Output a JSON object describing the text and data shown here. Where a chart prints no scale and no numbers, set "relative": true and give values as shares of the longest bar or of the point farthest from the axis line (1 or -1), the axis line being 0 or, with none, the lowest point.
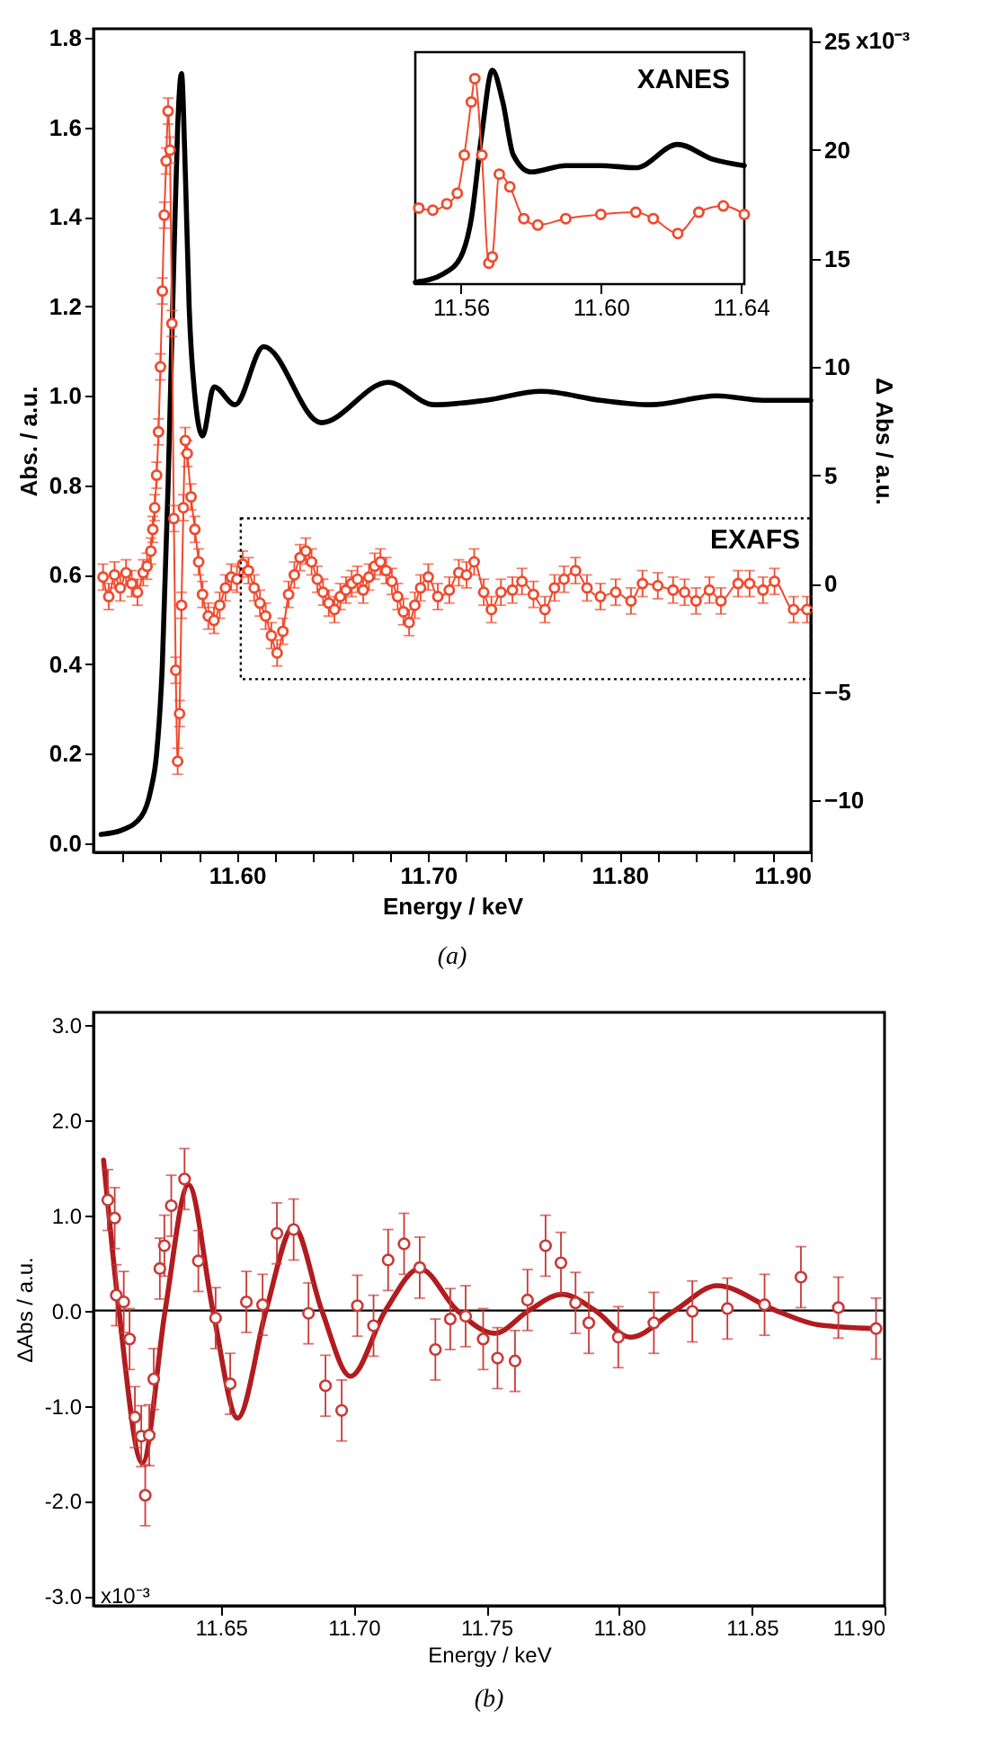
{
  "chart_data": [
    {
      "type": "line",
      "line_style": "solid",
      "xlabel": "Energy / keV",
      "ylabel": "Abs. / a.u.",
      "y2label": "Δ Abs / a.u.",
      "xlim": [
        11.525,
        11.9
      ],
      "xticks": [
        {
          "value": 11.54,
          "label": null
        },
        {
          "value": 11.56,
          "label": null
        },
        {
          "value": 11.58,
          "label": null
        },
        {
          "value": 11.6,
          "label": "11.60"
        },
        {
          "value": 11.62,
          "label": null
        },
        {
          "value": 11.64,
          "label": null
        },
        {
          "value": 11.66,
          "label": null
        },
        {
          "value": 11.68,
          "label": null
        },
        {
          "value": 11.7,
          "label": "11.70"
        },
        {
          "value": 11.72,
          "label": null
        },
        {
          "value": 11.74,
          "label": null
        },
        {
          "value": 11.76,
          "label": null
        },
        {
          "value": 11.78,
          "label": null
        },
        {
          "value": 11.8,
          "label": "11.80"
        },
        {
          "value": 11.82,
          "label": null
        },
        {
          "value": 11.84,
          "label": null
        },
        {
          "value": 11.86,
          "label": null
        },
        {
          "value": 11.88,
          "label": null
        },
        {
          "value": 11.9,
          "label": "11.90"
        }
      ],
      "ylim": [
        -0.02,
        1.82
      ],
      "yticks": [
        {
          "value": 0,
          "label": "0.0"
        },
        0.2,
        0.4,
        0.6,
        0.8,
        {
          "value": 1,
          "label": "1.0"
        },
        1.2,
        1.4,
        1.6,
        1.8
      ],
      "y2lim": [
        -12.4,
        25.6
      ],
      "y2ticks": [
        -10,
        -5,
        0,
        5,
        10,
        15,
        20,
        25
      ],
      "annotations": [
        "EXAFS",
        "(a)",
        "x10⁻³"
      ],
      "series": [
        {
          "color": "#000000",
          "x": [
            11.529,
            11.54,
            11.55,
            11.555,
            11.558,
            11.561,
            11.564,
            11.567,
            11.569,
            11.571,
            11.573,
            11.575,
            11.578,
            11.582,
            11.588,
            11.599,
            11.614,
            11.644,
            11.679,
            11.703,
            11.73,
            11.759,
            11.79,
            11.816,
            11.851,
            11.875,
            11.9
          ],
          "values": [
            0.02,
            0.03,
            0.06,
            0.12,
            0.2,
            0.4,
            0.8,
            1.3,
            1.6,
            1.72,
            1.5,
            1.2,
            1.0,
            0.91,
            1.02,
            0.98,
            1.11,
            0.94,
            1.03,
            0.98,
            0.99,
            1.01,
            0.99,
            0.98,
            1.0,
            0.99,
            0.99
          ]
        },
        {
          "color": "#ef4a2e",
          "axis": "y2",
          "marker": "circle",
          "x": [
            11.53,
            11.533,
            11.536,
            11.539,
            11.542,
            11.545,
            11.548,
            11.551,
            11.553,
            11.555,
            11.556,
            11.557,
            11.558,
            11.559,
            11.56,
            11.561,
            11.562,
            11.563,
            11.564,
            11.565,
            11.566,
            11.567,
            11.568,
            11.569,
            11.57,
            11.571,
            11.572,
            11.573,
            11.574,
            11.576,
            11.578,
            11.58,
            11.582,
            11.585,
            11.588,
            11.591,
            11.594,
            11.597,
            11.6,
            11.603,
            11.606,
            11.609,
            11.612,
            11.615,
            11.618,
            11.621,
            11.624,
            11.627,
            11.63,
            11.633,
            11.636,
            11.639,
            11.642,
            11.645,
            11.648,
            11.651,
            11.654,
            11.657,
            11.66,
            11.663,
            11.666,
            11.669,
            11.672,
            11.675,
            11.678,
            11.681,
            11.684,
            11.687,
            11.69,
            11.693,
            11.696,
            11.7,
            11.705,
            11.711,
            11.716,
            11.72,
            11.724,
            11.729,
            11.733,
            11.738,
            11.744,
            11.749,
            11.755,
            11.761,
            11.766,
            11.771,
            11.777,
            11.783,
            11.79,
            11.798,
            11.806,
            11.812,
            11.82,
            11.828,
            11.834,
            11.84,
            11.847,
            11.853,
            11.862,
            11.868,
            11.875,
            11.881,
            11.891,
            11.898
          ],
          "values": [
            0.3,
            -0.6,
            0.4,
            -0.2,
            0.5,
            0.0,
            -0.4,
            0.5,
            0.8,
            1.5,
            2.5,
            3.5,
            5.0,
            7.0,
            10.0,
            13.5,
            17.0,
            19.5,
            21.8,
            20.0,
            12.0,
            3.0,
            -4.0,
            -8.2,
            -6.0,
            -1.0,
            3.5,
            6.6,
            6.0,
            4.0,
            2.5,
            1.0,
            -0.5,
            -1.5,
            -1.7,
            -1.0,
            -0.2,
            0.3,
            0.2,
            0.9,
            0.6,
            -0.2,
            -0.9,
            -1.5,
            -2.4,
            -3.2,
            -2.2,
            -0.5,
            0.4,
            1.2,
            1.5,
            1.0,
            0.2,
            -0.4,
            -0.9,
            -1.2,
            -0.6,
            -0.3,
            0.0,
            0.2,
            -0.3,
            0.3,
            0.8,
            1.0,
            0.6,
            0.1,
            -0.6,
            -1.3,
            -1.8,
            -1.0,
            -0.2,
            0.3,
            -0.6,
            -0.3,
            0.5,
            0.4,
            1.0,
            -0.4,
            -1.2,
            -0.4,
            -0.3,
            0.1,
            -0.5,
            -1.2,
            -0.2,
            0.2,
            0.6,
            -0.2,
            -0.6,
            -0.4,
            -0.8,
            0.0,
            -0.1,
            -0.3,
            -0.4,
            -0.8,
            -0.3,
            -0.8,
            0.0,
            0.0,
            -0.3,
            0.1,
            -1.2,
            -1.2
          ],
          "errors": [
            0.6,
            0.6,
            0.6,
            0.6,
            0.6,
            0.6,
            0.6,
            0.6,
            0.6,
            0.6,
            0.6,
            0.6,
            0.6,
            0.6,
            0.6,
            0.6,
            0.6,
            0.6,
            0.6,
            0.6,
            0.6,
            0.6,
            0.6,
            0.6,
            0.6,
            0.6,
            0.6,
            0.6,
            0.6,
            0.6,
            0.6,
            0.6,
            0.6,
            0.6,
            0.6,
            0.6,
            0.6,
            0.6,
            0.6,
            0.6,
            0.6,
            0.6,
            0.6,
            0.6,
            0.6,
            0.6,
            0.6,
            0.6,
            0.6,
            0.6,
            0.6,
            0.6,
            0.6,
            0.6,
            0.6,
            0.6,
            0.6,
            0.6,
            0.6,
            0.6,
            0.6,
            0.6,
            0.6,
            0.6,
            0.6,
            0.6,
            0.6,
            0.6,
            0.6,
            0.6,
            0.6,
            0.6,
            0.6,
            0.6,
            0.6,
            0.6,
            0.6,
            0.6,
            0.6,
            0.6,
            0.6,
            0.6,
            0.6,
            0.6,
            0.6,
            0.6,
            0.6,
            0.6,
            0.6,
            0.6,
            0.6,
            0.6,
            0.6,
            0.6,
            0.6,
            0.6,
            0.6,
            0.6,
            0.6,
            0.6,
            0.6,
            0.6,
            0.6,
            0.6
          ]
        }
      ]
    },
    {
      "type": "line",
      "line_style": "solid",
      "relative": true,
      "tick_labels": "x",
      "xlim": [
        11.547,
        11.641
      ],
      "xticks": [
        11.56,
        {
          "value": 11.6,
          "label": "11.60"
        },
        11.64
      ],
      "annotations": [
        "XANES"
      ],
      "series": [
        {
          "color": "#000000",
          "x": [
            11.547,
            11.555,
            11.56,
            11.563,
            11.566,
            11.569,
            11.572,
            11.575,
            11.58,
            11.59,
            11.6,
            11.61,
            11.622,
            11.632,
            11.641
          ],
          "values": [
            0.0,
            0.04,
            0.12,
            0.3,
            0.7,
            1.0,
            0.85,
            0.6,
            0.52,
            0.55,
            0.55,
            0.54,
            0.65,
            0.58,
            0.55
          ]
        },
        {
          "color": "#ef4a2e",
          "marker": "circle",
          "x": [
            11.548,
            11.552,
            11.556,
            11.559,
            11.561,
            11.563,
            11.564,
            11.566,
            11.568,
            11.569,
            11.571,
            11.574,
            11.578,
            11.582,
            11.59,
            11.6,
            11.61,
            11.615,
            11.622,
            11.628,
            11.635,
            11.641
          ],
          "values": [
            0.35,
            0.34,
            0.37,
            0.42,
            0.6,
            0.85,
            0.96,
            0.6,
            0.09,
            0.12,
            0.51,
            0.45,
            0.3,
            0.27,
            0.3,
            0.32,
            0.33,
            0.3,
            0.23,
            0.33,
            0.36,
            0.32
          ]
        }
      ]
    },
    {
      "type": "scatter",
      "line_style": "solid",
      "xlabel": "Energy / keV",
      "ylabel": "ΔAbs / a.u.",
      "xlim": [
        11.602,
        11.9
      ],
      "xticks": [
        11.65,
        {
          "value": 11.7,
          "label": "11.70"
        },
        11.75,
        {
          "value": 11.8,
          "label": "11.80"
        },
        11.85,
        {
          "value": 11.9,
          "label": "11.90"
        }
      ],
      "ylim": [
        -3.1,
        3.13
      ],
      "yticks": [
        {
          "value": -3,
          "label": "-3.0"
        },
        {
          "value": -2,
          "label": "-2.0"
        },
        {
          "value": -1,
          "label": "-1.0"
        },
        {
          "value": 0,
          "label": "0.0"
        },
        {
          "value": 1,
          "label": "1.0"
        },
        {
          "value": 2,
          "label": "2.0"
        },
        {
          "value": 3,
          "label": "3.0"
        }
      ],
      "ref_lines": [
        {
          "axis": "y",
          "value": 0.0,
          "color": "#000000"
        }
      ],
      "annotations": [
        "(b)",
        "x10⁻³"
      ],
      "series": [
        {
          "color": "#c73a36",
          "marker": "circle",
          "x": [
            11.6074,
            11.61,
            11.6106,
            11.6134,
            11.6156,
            11.6176,
            11.62,
            11.6215,
            11.623,
            11.6247,
            11.627,
            11.6287,
            11.6313,
            11.6363,
            11.6415,
            11.648,
            11.6535,
            11.6596,
            11.6657,
            11.6711,
            11.6774,
            11.683,
            11.6894,
            11.6955,
            11.7014,
            11.7075,
            11.713,
            11.719,
            11.7249,
            11.7308,
            11.7364,
            11.7422,
            11.7488,
            11.7542,
            11.7608,
            11.7655,
            11.7723,
            11.7781,
            11.7836,
            11.7886,
            11.7997,
            11.8131,
            11.8276,
            11.8408,
            11.8548,
            11.8685,
            11.8826,
            11.8968
          ],
          "values": [
            1.16,
            0.97,
            0.16,
            0.09,
            -0.3,
            -1.12,
            -1.32,
            -1.94,
            -1.31,
            -0.72,
            0.44,
            0.68,
            1.1,
            1.38,
            0.52,
            -0.08,
            -0.77,
            0.09,
            0.06,
            0.81,
            0.85,
            -0.03,
            -0.79,
            -1.05,
            0.05,
            -0.16,
            0.53,
            0.7,
            0.45,
            -0.41,
            -0.09,
            -0.06,
            -0.3,
            -0.5,
            -0.53,
            0.11,
            0.68,
            0.5,
            0.08,
            -0.13,
            -0.28,
            -0.13,
            -0.01,
            0.02,
            0.06,
            0.35,
            0.03,
            -0.19
          ],
          "errors": [
            0.32,
            0.32,
            0.32,
            0.32,
            0.32,
            0.32,
            0.32,
            0.32,
            0.32,
            0.32,
            0.32,
            0.32,
            0.32,
            0.32,
            0.32,
            0.32,
            0.32,
            0.32,
            0.32,
            0.32,
            0.32,
            0.32,
            0.32,
            0.32,
            0.32,
            0.32,
            0.32,
            0.32,
            0.32,
            0.32,
            0.32,
            0.32,
            0.32,
            0.32,
            0.32,
            0.32,
            0.32,
            0.32,
            0.32,
            0.32,
            0.32,
            0.32,
            0.32,
            0.32,
            0.32,
            0.32,
            0.32,
            0.32
          ]
        },
        {
          "type": "line",
          "color": "#b01c1f",
          "x": [
            11.6058,
            11.6116,
            11.6204,
            11.629,
            11.6378,
            11.647,
            11.6563,
            11.667,
            11.6774,
            11.688,
            11.6988,
            11.712,
            11.7249,
            11.739,
            11.7531,
            11.766,
            11.7786,
            11.791,
            11.8042,
            11.821,
            11.8369,
            11.859,
            11.875,
            11.8968
          ],
          "values": [
            1.58,
            0.0,
            -1.6,
            0.0,
            1.32,
            0.0,
            -1.13,
            0.0,
            0.88,
            0.0,
            -0.69,
            0.0,
            0.44,
            0.0,
            -0.24,
            0.0,
            0.17,
            0.0,
            -0.28,
            0.0,
            0.26,
            0.0,
            -0.15,
            -0.19
          ]
        }
      ]
    }
  ]
}
